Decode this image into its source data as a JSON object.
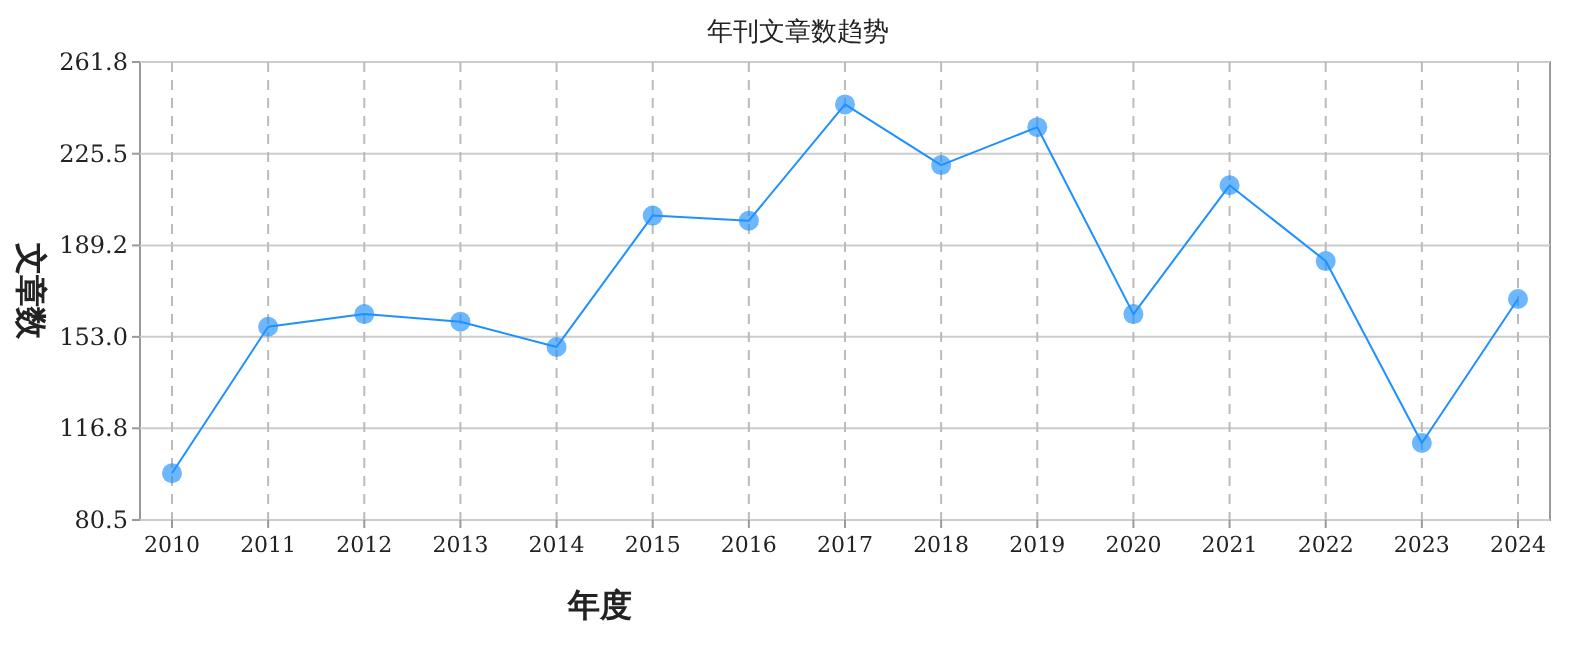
{
  "chart_data": {
    "type": "line",
    "title": "年刊文章数趋势",
    "xlabel": "年度",
    "ylabel": "文章数",
    "categories": [
      "2010",
      "2011",
      "2012",
      "2013",
      "2014",
      "2015",
      "2016",
      "2017",
      "2018",
      "2019",
      "2020",
      "2021",
      "2022",
      "2023",
      "2024"
    ],
    "series": [
      {
        "color": "#1e90ff",
        "values": [
          99,
          157,
          162,
          159,
          149,
          201,
          199,
          245,
          221,
          236,
          162,
          213,
          183,
          111,
          168
        ]
      }
    ],
    "ylim": [
      80.5,
      261.8
    ],
    "yticks": [
      80.5,
      116.8,
      {
        "value": 153,
        "label": "153.0"
      },
      189.2,
      225.5,
      261.8
    ],
    "grid": true,
    "marker": "circle",
    "line_style": "solid"
  }
}
